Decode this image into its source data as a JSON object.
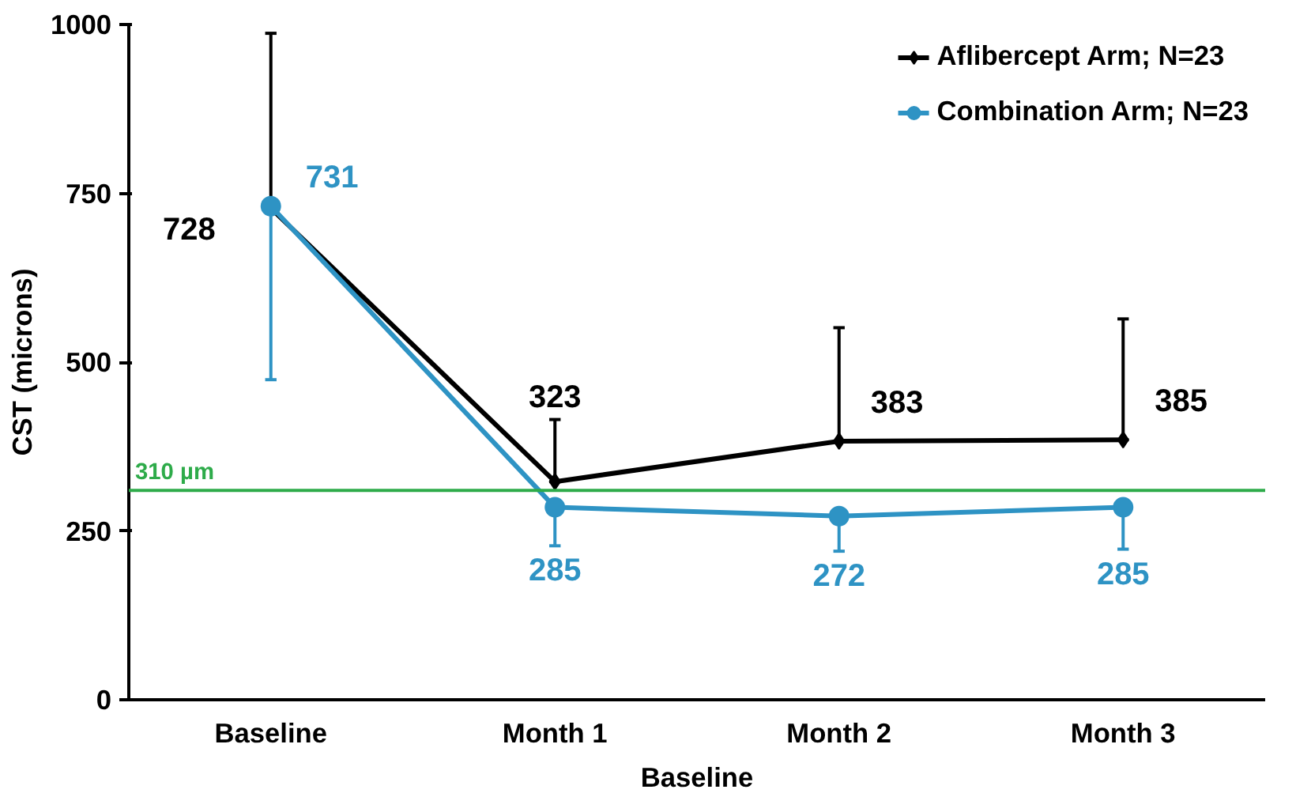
{
  "chart_data": {
    "type": "line",
    "xlabel": "Baseline",
    "ylabel": "CST (microns)",
    "categories": [
      "Baseline",
      "Month 1",
      "Month 2",
      "Month 3"
    ],
    "ylim": [
      0,
      1000
    ],
    "yticks": [
      0,
      250,
      500,
      750,
      1000
    ],
    "grid": false,
    "legend": "top right",
    "data_labels": true,
    "series": [
      {
        "name": "Aflibercept Arm; N=23",
        "color": "#000000",
        "marker": "diamond",
        "values": [
          728,
          323,
          383,
          385
        ],
        "errors": [
          [
            728,
            987
          ],
          [
            323,
            415
          ],
          [
            383,
            551
          ],
          [
            385,
            564
          ]
        ]
      },
      {
        "name": "Combination Arm; N=23",
        "color": "#2e93c4",
        "marker": "circle",
        "values": [
          731,
          285,
          272,
          285
        ],
        "errors": [
          [
            474,
            731
          ],
          [
            228,
            285
          ],
          [
            220,
            272
          ],
          [
            223,
            285
          ]
        ]
      }
    ],
    "ref_lines": [
      {
        "axis": "y",
        "value": 310,
        "label": "310 µm",
        "color": "#2eab4a"
      }
    ]
  }
}
